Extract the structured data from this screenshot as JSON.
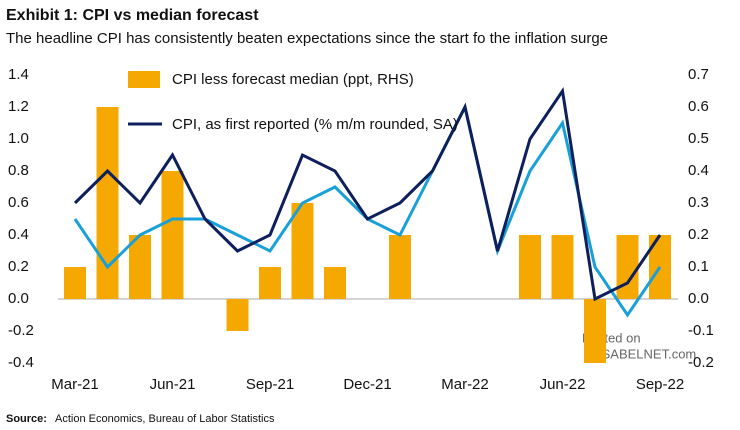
{
  "chart_data": {
    "type": "bar",
    "title": "Exhibit 1: CPI vs median forecast",
    "subtitle": "The headline CPI has consistently beaten expectations since the start fo the inflation surge",
    "categories": [
      "Mar-21",
      null,
      null,
      "Jun-21",
      null,
      null,
      "Sep-21",
      null,
      null,
      "Dec-21",
      null,
      null,
      "Mar-22",
      null,
      null,
      "Jun-22",
      null,
      null,
      "Sep-22"
    ],
    "series": [
      {
        "name": "CPI less forecast median (ppt, RHS)",
        "type": "bar",
        "axis": "y2",
        "color": "#f5a800",
        "values": [
          0.1,
          0.6,
          0.2,
          0.4,
          0,
          -0.1,
          0.1,
          0.3,
          0.1,
          0,
          0.2,
          0,
          0,
          0,
          0.2,
          0.2,
          -0.2,
          0.2,
          0.2
        ]
      },
      {
        "name": "CPI, as first reported (% m/m rounded, SA)",
        "type": "line",
        "color": "#0d1f5c",
        "values": [
          0.6,
          0.8,
          0.6,
          0.9,
          0.5,
          0.3,
          0.4,
          0.9,
          0.8,
          0.5,
          0.6,
          0.8,
          1.2,
          0.3,
          1.0,
          1.3,
          0.0,
          0.1,
          0.4
        ]
      },
      {
        "type": "line",
        "color": "#1aa0d8",
        "values": [
          0.5,
          0.2,
          0.4,
          0.5,
          0.5,
          0.4,
          0.3,
          0.6,
          0.7,
          0.5,
          0.4,
          0.8,
          1.2,
          0.3,
          0.8,
          1.1,
          0.2,
          -0.1,
          0.2
        ]
      }
    ],
    "ylim": [
      -0.4,
      1.4
    ],
    "yticks": [
      -0.4,
      -0.2,
      {
        "value": 0,
        "label": "0.0"
      },
      0.2,
      0.4,
      0.6,
      0.8,
      {
        "value": 1,
        "label": "1.0"
      },
      1.2,
      1.4
    ],
    "y2lim": [
      -0.2,
      0.7
    ],
    "y2ticks": [
      -0.2,
      -0.1,
      {
        "value": 0,
        "label": "0.0"
      },
      0.1,
      0.2,
      0.3,
      0.4,
      0.5,
      0.6,
      0.7
    ],
    "grid": false,
    "source_label": "Source:",
    "source": "Action Economics,  Bureau of Labor Statistics",
    "watermark": [
      "Posted on",
      "ISABELNET.com"
    ]
  }
}
